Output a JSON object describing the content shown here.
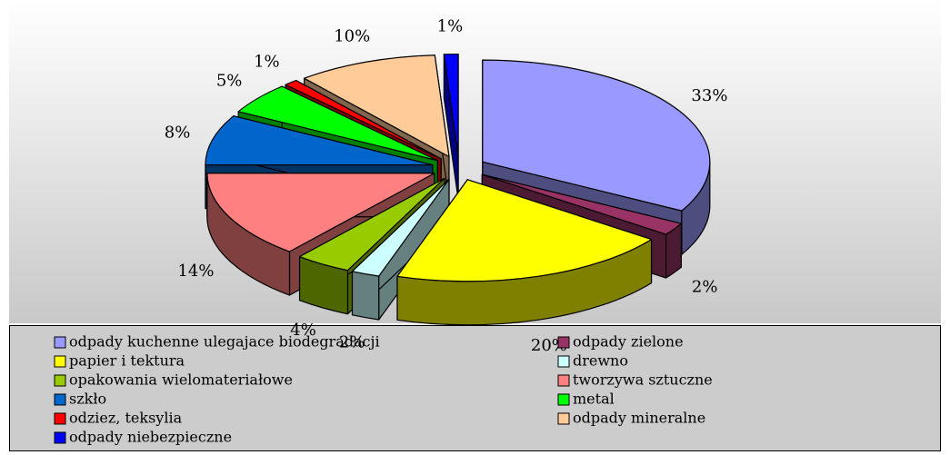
{
  "chart_data": {
    "type": "pie3d",
    "categories": [
      "odpady kuchenne ulegajace biodegradacji",
      "odpady zielone",
      "papier i tektura",
      "drewno",
      "opakowania wielomateriałowe",
      "tworzywa sztuczne",
      "szkło",
      "metal",
      "odziez, teksylia",
      "odpady mineralne",
      "odpady niebezpieczne"
    ],
    "values": [
      33,
      2,
      20,
      2,
      4,
      14,
      8,
      5,
      1,
      10,
      1
    ],
    "value_labels": [
      "33%",
      "2%",
      "20%",
      "2%",
      "4%",
      "14%",
      "8%",
      "5%",
      "1%",
      "10%",
      "1%"
    ],
    "colors": [
      "#9999ff",
      "#993366",
      "#ffff00",
      "#ccffff",
      "#99cc00",
      "#ff8080",
      "#0066cc",
      "#00ff00",
      "#ff0000",
      "#ffcc99",
      "#0000ff"
    ],
    "legend": "bottom"
  }
}
